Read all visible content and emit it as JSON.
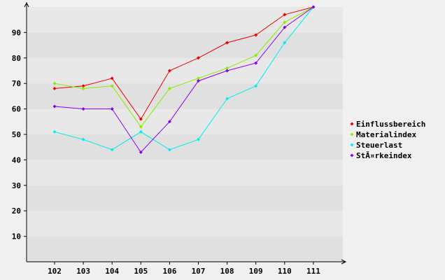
{
  "chart_data": {
    "type": "line",
    "title": "",
    "xlabel": "",
    "ylabel": "",
    "categories": [
      "102",
      "103",
      "104",
      "105",
      "106",
      "107",
      "108",
      "109",
      "110",
      "111"
    ],
    "ylim": [
      0,
      100
    ],
    "yticks": [
      "10",
      "20",
      "30",
      "40",
      "50",
      "60",
      "70",
      "80",
      "90"
    ],
    "grid": "horizontal bands",
    "legend_position": "right",
    "series": [
      {
        "name": "Einflussbereich",
        "color": "#ee0000",
        "values": [
          68,
          69,
          72,
          56,
          75,
          80,
          86,
          89,
          97,
          100
        ]
      },
      {
        "name": "Materialindex",
        "color": "#88ee00",
        "values": [
          70,
          68,
          69,
          53,
          68,
          72,
          76,
          81,
          94,
          100
        ]
      },
      {
        "name": "Steuerlast",
        "color": "#00eeee",
        "values": [
          51,
          48,
          44,
          51,
          44,
          48,
          64,
          69,
          86,
          100
        ]
      },
      {
        "name": "StÃ¤rkeindex",
        "color": "#8800ee",
        "values": [
          61,
          60,
          60,
          43,
          55,
          71,
          75,
          78,
          92,
          100
        ]
      }
    ]
  }
}
